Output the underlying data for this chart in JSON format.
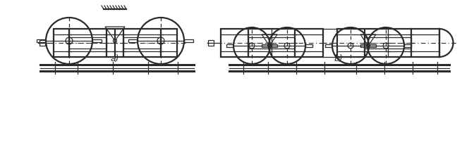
{
  "bg_color": "#ffffff",
  "line_color": "#2a2a2a",
  "label_a": "a)",
  "label_b": "b)",
  "fig_width": 6.55,
  "fig_height": 2.19,
  "dpi": 100
}
